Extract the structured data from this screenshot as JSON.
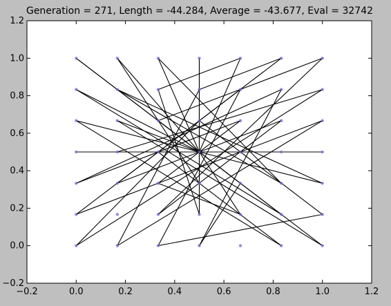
{
  "window": {
    "background": "#bfbfbf",
    "axes_background": "#ffffff",
    "line_color": "#000000",
    "point_color": "#6b6bd6"
  },
  "chart_data": {
    "type": "line",
    "title": "Generation = 271, Length = -44.284, Average = -43.677, Eval = 32742",
    "xlabel": "",
    "ylabel": "",
    "xlim": [
      -0.2,
      1.2
    ],
    "ylim": [
      -0.2,
      1.2
    ],
    "xticks": [
      "−0.2",
      "0.0",
      "0.2",
      "0.4",
      "0.6",
      "0.8",
      "1.0",
      "1.2"
    ],
    "yticks": [
      "−0.2",
      "0.0",
      "0.2",
      "0.4",
      "0.6",
      "0.8",
      "1.0",
      "1.2"
    ],
    "grid": false,
    "legend": "none",
    "path": [
      [
        0.0,
        1.0
      ],
      [
        0.5,
        0.5
      ],
      [
        0.667,
        1.0
      ],
      [
        0.333,
        0.833
      ],
      [
        0.5,
        0.167
      ],
      [
        0.5,
        1.0
      ],
      [
        0.5,
        0.333
      ],
      [
        0.167,
        1.0
      ],
      [
        0.5,
        0.5
      ],
      [
        0.833,
        0.167
      ],
      [
        0.0,
        0.833
      ],
      [
        0.5,
        0.5
      ],
      [
        1.0,
        0.333
      ],
      [
        0.167,
        0.833
      ],
      [
        0.833,
        0.333
      ],
      [
        0.333,
        1.0
      ],
      [
        0.5,
        0.5
      ],
      [
        0.0,
        0.667
      ],
      [
        0.833,
        0.0
      ],
      [
        0.333,
        0.5
      ],
      [
        1.0,
        0.5
      ],
      [
        0.0,
        0.5
      ],
      [
        0.833,
        0.5
      ],
      [
        0.167,
        0.5
      ],
      [
        1.0,
        0.833
      ],
      [
        0.0,
        0.0
      ],
      [
        0.5,
        0.667
      ],
      [
        1.0,
        0.167
      ],
      [
        0.333,
        0.0
      ],
      [
        0.667,
        0.833
      ],
      [
        0.0,
        0.167
      ],
      [
        1.0,
        0.667
      ],
      [
        0.167,
        0.0
      ],
      [
        0.5,
        0.833
      ],
      [
        0.833,
        1.0
      ],
      [
        0.167,
        0.333
      ],
      [
        0.833,
        0.667
      ],
      [
        0.333,
        0.167
      ],
      [
        1.0,
        1.0
      ],
      [
        0.333,
        0.667
      ],
      [
        1.0,
        0.0
      ],
      [
        0.167,
        0.667
      ],
      [
        0.5,
        0.5
      ],
      [
        0.667,
        0.167
      ],
      [
        0.333,
        0.333
      ],
      [
        0.667,
        0.667
      ],
      [
        0.0,
        0.333
      ],
      [
        0.833,
        0.833
      ],
      [
        0.5,
        0.0
      ],
      [
        0.667,
        0.333
      ],
      [
        0.0,
        1.0
      ]
    ],
    "points": [
      [
        0.0,
        1.0
      ],
      [
        0.167,
        1.0
      ],
      [
        0.333,
        1.0
      ],
      [
        0.5,
        1.0
      ],
      [
        0.667,
        1.0
      ],
      [
        0.833,
        1.0
      ],
      [
        1.0,
        1.0
      ],
      [
        0.0,
        0.833
      ],
      [
        0.167,
        0.833
      ],
      [
        0.333,
        0.833
      ],
      [
        0.5,
        0.833
      ],
      [
        0.667,
        0.833
      ],
      [
        0.833,
        0.833
      ],
      [
        1.0,
        0.833
      ],
      [
        0.0,
        0.667
      ],
      [
        0.167,
        0.667
      ],
      [
        0.333,
        0.667
      ],
      [
        0.5,
        0.667
      ],
      [
        0.667,
        0.667
      ],
      [
        0.833,
        0.667
      ],
      [
        1.0,
        0.667
      ],
      [
        0.0,
        0.5
      ],
      [
        0.167,
        0.5
      ],
      [
        0.333,
        0.5
      ],
      [
        0.5,
        0.5
      ],
      [
        0.667,
        0.5
      ],
      [
        0.833,
        0.5
      ],
      [
        1.0,
        0.5
      ],
      [
        0.0,
        0.333
      ],
      [
        0.167,
        0.333
      ],
      [
        0.333,
        0.333
      ],
      [
        0.5,
        0.333
      ],
      [
        0.667,
        0.333
      ],
      [
        0.833,
        0.333
      ],
      [
        1.0,
        0.333
      ],
      [
        0.0,
        0.167
      ],
      [
        0.167,
        0.167
      ],
      [
        0.333,
        0.167
      ],
      [
        0.5,
        0.167
      ],
      [
        0.667,
        0.167
      ],
      [
        0.833,
        0.167
      ],
      [
        1.0,
        0.167
      ],
      [
        0.0,
        0.0
      ],
      [
        0.167,
        0.0
      ],
      [
        0.333,
        0.0
      ],
      [
        0.5,
        0.0
      ],
      [
        0.667,
        0.0
      ],
      [
        0.833,
        0.0
      ],
      [
        1.0,
        0.0
      ]
    ]
  }
}
